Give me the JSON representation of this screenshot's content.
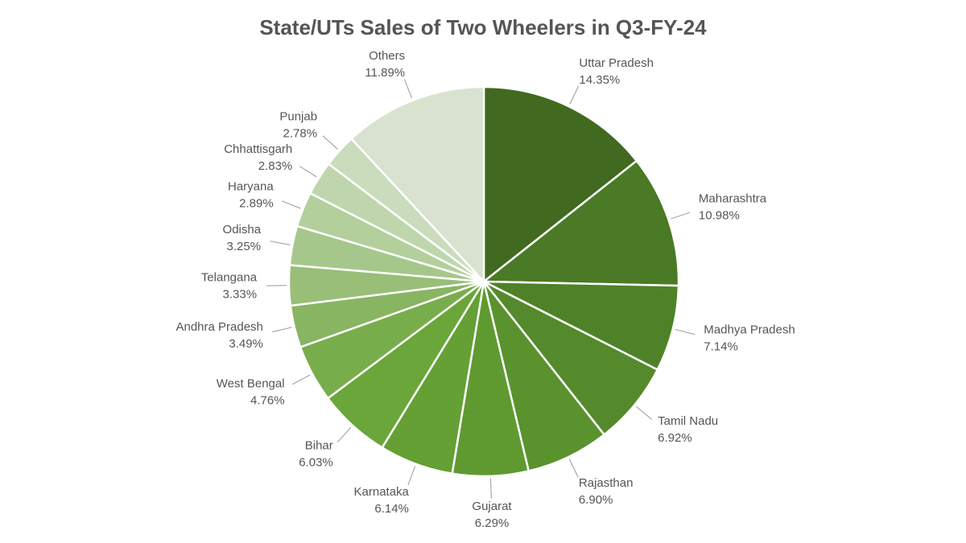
{
  "chart_data": {
    "type": "pie",
    "title": "State/UTs Sales of Two Wheelers in Q3-FY-24",
    "categories": [
      "Uttar Pradesh",
      "Maharashtra",
      "Madhya Pradesh",
      "Tamil Nadu",
      "Rajasthan",
      "Gujarat",
      "Karnataka",
      "Bihar",
      "West Bengal",
      "Andhra Pradesh",
      "Telangana",
      "Odisha",
      "Haryana",
      "Chhattisgarh",
      "Punjab",
      "Others"
    ],
    "values": [
      14.35,
      10.98,
      7.14,
      6.92,
      6.9,
      6.29,
      6.14,
      6.03,
      4.76,
      3.49,
      3.33,
      3.25,
      2.89,
      2.83,
      2.78,
      11.89
    ],
    "value_labels": [
      "14.35%",
      "10.98%",
      "7.14%",
      "6.92%",
      "6.90%",
      "6.29%",
      "6.14%",
      "6.03%",
      "4.76%",
      "3.49%",
      "3.33%",
      "3.25%",
      "2.89%",
      "2.83%",
      "2.78%",
      "11.89%"
    ],
    "colors": [
      "#41691f",
      "#4a7a25",
      "#4f8228",
      "#548a2b",
      "#5a922e",
      "#5f9a31",
      "#64a034",
      "#6aa63a",
      "#78ad4c",
      "#88b562",
      "#98be78",
      "#a6c78b",
      "#b3cf9c",
      "#bfd6ad",
      "#cbdcbd",
      "#d8e2cf"
    ]
  }
}
